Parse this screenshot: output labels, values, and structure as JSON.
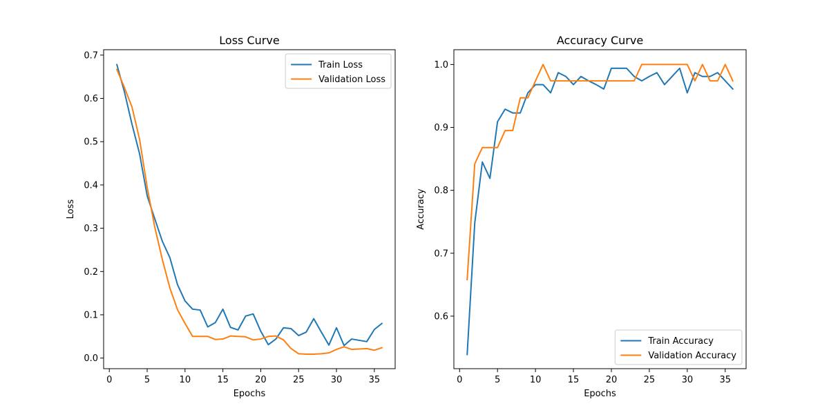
{
  "chart_data": [
    {
      "type": "line",
      "title": "Loss Curve",
      "xlabel": "Epochs",
      "ylabel": "Loss",
      "xlim": [
        -0.75,
        37.75
      ],
      "ylim": [
        -0.0245,
        0.7125
      ],
      "xticks": [
        0,
        5,
        10,
        15,
        20,
        25,
        30,
        35
      ],
      "yticks": [
        0.0,
        0.1,
        0.2,
        0.3,
        0.4,
        0.5,
        0.6,
        0.7
      ],
      "ytick_decimals": 1,
      "grid": false,
      "legend_position": "upper right",
      "x": [
        1,
        2,
        3,
        4,
        5,
        6,
        7,
        8,
        9,
        10,
        11,
        12,
        13,
        14,
        15,
        16,
        17,
        18,
        19,
        20,
        21,
        22,
        23,
        24,
        25,
        26,
        27,
        28,
        29,
        30,
        31,
        32,
        33,
        34,
        35,
        36
      ],
      "series": [
        {
          "name": "Train Loss",
          "color": "#1f77b4",
          "values": [
            0.678,
            0.615,
            0.54,
            0.472,
            0.375,
            0.322,
            0.27,
            0.232,
            0.17,
            0.132,
            0.113,
            0.111,
            0.072,
            0.082,
            0.113,
            0.071,
            0.065,
            0.097,
            0.102,
            0.062,
            0.031,
            0.044,
            0.07,
            0.068,
            0.052,
            0.06,
            0.091,
            0.06,
            0.03,
            0.07,
            0.029,
            0.044,
            0.041,
            0.038,
            0.066,
            0.08
          ]
        },
        {
          "name": "Validation Loss",
          "color": "#ff7f0e",
          "values": [
            0.667,
            0.625,
            0.58,
            0.505,
            0.395,
            0.303,
            0.228,
            0.162,
            0.112,
            0.08,
            0.05,
            0.05,
            0.05,
            0.043,
            0.044,
            0.051,
            0.05,
            0.049,
            0.042,
            0.044,
            0.05,
            0.051,
            0.042,
            0.022,
            0.01,
            0.009,
            0.009,
            0.01,
            0.012,
            0.02,
            0.026,
            0.02,
            0.021,
            0.022,
            0.018,
            0.024
          ]
        }
      ]
    },
    {
      "type": "line",
      "title": "Accuracy Curve",
      "xlabel": "Epochs",
      "ylabel": "Accuracy",
      "xlim": [
        -0.75,
        37.75
      ],
      "ylim": [
        0.5165,
        1.0235
      ],
      "xticks": [
        0,
        5,
        10,
        15,
        20,
        25,
        30,
        35
      ],
      "yticks": [
        0.6,
        0.7,
        0.8,
        0.9,
        1.0
      ],
      "ytick_decimals": 1,
      "grid": false,
      "legend_position": "lower right",
      "x": [
        1,
        2,
        3,
        4,
        5,
        6,
        7,
        8,
        9,
        10,
        11,
        12,
        13,
        14,
        15,
        16,
        17,
        18,
        19,
        20,
        21,
        22,
        23,
        24,
        25,
        26,
        27,
        28,
        29,
        30,
        31,
        32,
        33,
        34,
        35,
        36
      ],
      "series": [
        {
          "name": "Train Accuracy",
          "color": "#1f77b4",
          "values": [
            0.539,
            0.748,
            0.845,
            0.819,
            0.909,
            0.929,
            0.923,
            0.923,
            0.955,
            0.968,
            0.968,
            0.955,
            0.987,
            0.981,
            0.968,
            0.981,
            0.974,
            0.968,
            0.961,
            0.994,
            0.994,
            0.994,
            0.981,
            0.974,
            0.981,
            0.987,
            0.968,
            0.981,
            0.994,
            0.955,
            0.987,
            0.981,
            0.981,
            0.987,
            0.974,
            0.961
          ]
        },
        {
          "name": "Validation Accuracy",
          "color": "#ff7f0e",
          "values": [
            0.658,
            0.842,
            0.868,
            0.868,
            0.868,
            0.895,
            0.895,
            0.947,
            0.947,
            0.974,
            1.0,
            0.974,
            0.974,
            0.974,
            0.974,
            0.974,
            0.974,
            0.974,
            0.974,
            0.974,
            0.974,
            0.974,
            0.974,
            1.0,
            1.0,
            1.0,
            1.0,
            1.0,
            1.0,
            1.0,
            0.974,
            1.0,
            0.974,
            0.974,
            1.0,
            0.974
          ]
        }
      ]
    }
  ]
}
